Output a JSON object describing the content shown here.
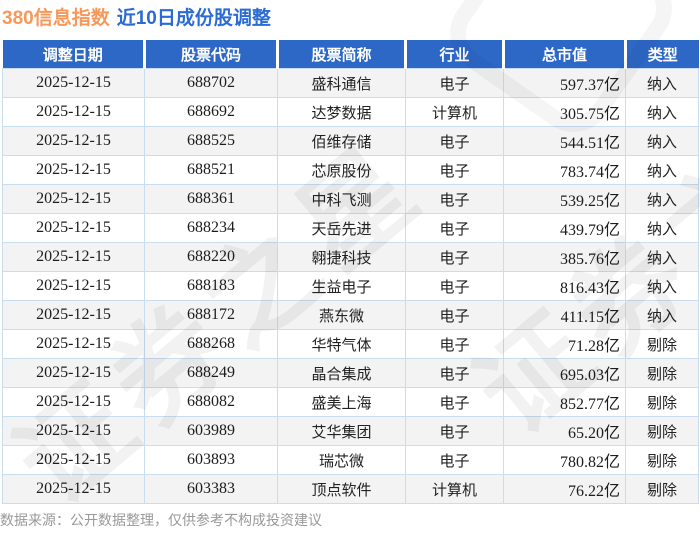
{
  "header": {
    "index_name": "380信息指数",
    "subtitle": "近10日成份股调整"
  },
  "chart_data": {
    "type": "table",
    "title": "380信息指数 近10日成份股调整",
    "columns": [
      "调整日期",
      "股票代码",
      "股票简称",
      "行业",
      "总市值",
      "类型"
    ],
    "rows": [
      [
        "2025-12-15",
        "688702",
        "盛科通信",
        "电子",
        "597.37亿",
        "纳入"
      ],
      [
        "2025-12-15",
        "688692",
        "达梦数据",
        "计算机",
        "305.75亿",
        "纳入"
      ],
      [
        "2025-12-15",
        "688525",
        "佰维存储",
        "电子",
        "544.51亿",
        "纳入"
      ],
      [
        "2025-12-15",
        "688521",
        "芯原股份",
        "电子",
        "783.74亿",
        "纳入"
      ],
      [
        "2025-12-15",
        "688361",
        "中科飞测",
        "电子",
        "539.25亿",
        "纳入"
      ],
      [
        "2025-12-15",
        "688234",
        "天岳先进",
        "电子",
        "439.79亿",
        "纳入"
      ],
      [
        "2025-12-15",
        "688220",
        "翱捷科技",
        "电子",
        "385.76亿",
        "纳入"
      ],
      [
        "2025-12-15",
        "688183",
        "生益电子",
        "电子",
        "816.43亿",
        "纳入"
      ],
      [
        "2025-12-15",
        "688172",
        "燕东微",
        "电子",
        "411.15亿",
        "纳入"
      ],
      [
        "2025-12-15",
        "688268",
        "华特气体",
        "电子",
        "71.28亿",
        "剔除"
      ],
      [
        "2025-12-15",
        "688249",
        "晶合集成",
        "电子",
        "695.03亿",
        "剔除"
      ],
      [
        "2025-12-15",
        "688082",
        "盛美上海",
        "电子",
        "852.77亿",
        "剔除"
      ],
      [
        "2025-12-15",
        "603989",
        "艾华集团",
        "电子",
        "65.20亿",
        "剔除"
      ],
      [
        "2025-12-15",
        "603893",
        "瑞芯微",
        "电子",
        "780.82亿",
        "剔除"
      ],
      [
        "2025-12-15",
        "603383",
        "顶点软件",
        "计算机",
        "76.22亿",
        "剔除"
      ]
    ]
  },
  "footer": {
    "note": "数据来源：公开数据整理，仅供参考不构成投资建议"
  },
  "watermark": {
    "text": "证券之星"
  },
  "colors": {
    "header_bg": "#2d68c6",
    "title_orange": "#f8975a",
    "title_blue": "#2b6bd3",
    "row_alt": "#f3f3f3",
    "border": "#c9ddf0",
    "footer_text": "#999999"
  }
}
